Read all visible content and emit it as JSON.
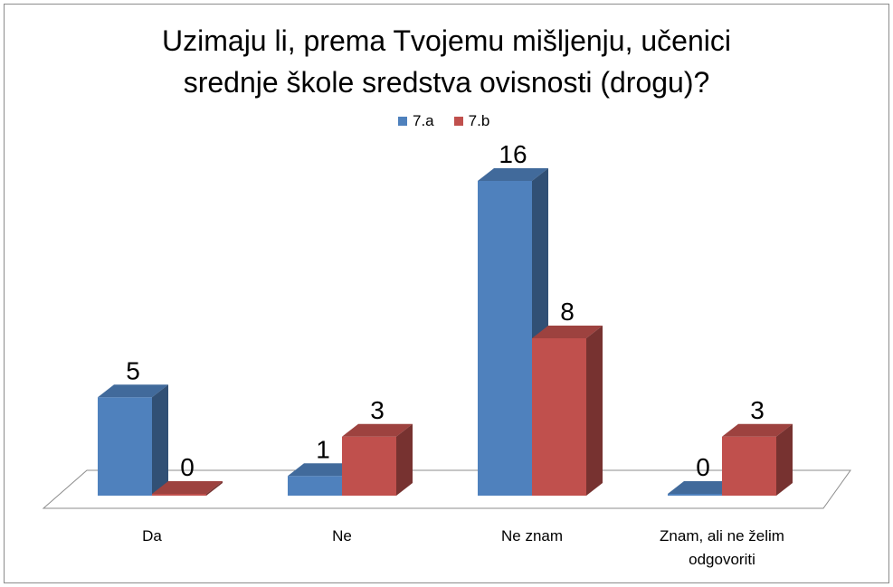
{
  "chart_data": {
    "type": "bar",
    "title_lines": [
      "Uzimaju li, prema Tvojemu mišljenju, učenici",
      "srednje škole sredstva ovisnosti (drogu)?"
    ],
    "categories": [
      "Da",
      "Ne",
      "Ne znam",
      "Znam, ali ne želim odgovoriti"
    ],
    "category_label_lines": [
      [
        "Da"
      ],
      [
        "Ne"
      ],
      [
        "Ne znam"
      ],
      [
        "Znam, ali ne želim",
        "odgovoriti"
      ]
    ],
    "series": [
      {
        "name": "7.a",
        "values": [
          5,
          1,
          16,
          0
        ],
        "color": "#4f81bd"
      },
      {
        "name": "7.b",
        "values": [
          0,
          3,
          8,
          3
        ],
        "color": "#c0504d"
      }
    ],
    "ylim": [
      0,
      16
    ],
    "legend_position": "top",
    "grid": false,
    "style": "3d-clustered-column"
  }
}
